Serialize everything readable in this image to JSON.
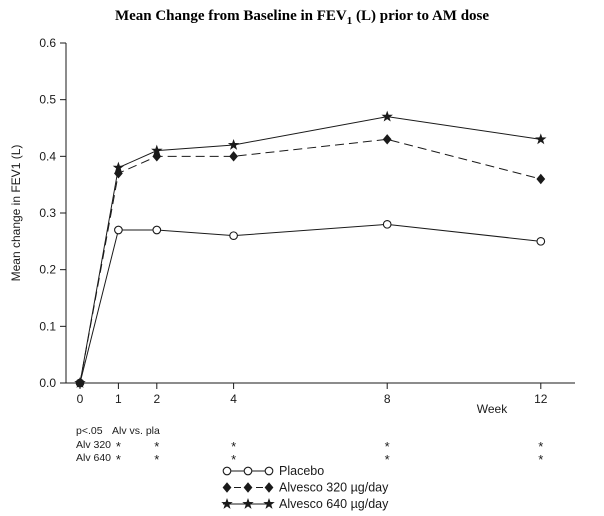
{
  "title": {
    "prefix": "Mean Change from Baseline in FEV",
    "sub": "1",
    "suffix": " (L) prior to AM dose"
  },
  "chart_data": {
    "type": "line",
    "title": "Mean Change from Baseline in FEV1 (L) prior to AM dose",
    "x": [
      0,
      1,
      2,
      4,
      8,
      12
    ],
    "xticks": [
      0,
      1,
      2,
      4,
      8,
      12
    ],
    "yticks": [
      0.0,
      0.1,
      0.2,
      0.3,
      0.4,
      0.5,
      0.6
    ],
    "ylim": [
      0.0,
      0.6
    ],
    "xlabel": "Week",
    "ylabel": "Mean change in FEV1 (L)",
    "grid": false,
    "legend_position": "bottom",
    "line_color": "#1a1a1a",
    "series": [
      {
        "name": "Placebo",
        "marker": "circle-open",
        "line": "solid",
        "values": [
          0.0,
          0.27,
          0.27,
          0.26,
          0.28,
          0.25
        ]
      },
      {
        "name": "Alvesco 320 µg/day",
        "marker": "diamond-filled",
        "line": "dashed",
        "values": [
          0.0,
          0.37,
          0.4,
          0.4,
          0.43,
          0.36
        ]
      },
      {
        "name": "Alvesco 640 µg/day",
        "marker": "star-filled",
        "line": "solid",
        "values": [
          0.0,
          0.38,
          0.41,
          0.42,
          0.47,
          0.43
        ]
      }
    ]
  },
  "significance": {
    "header_left": "p<.05",
    "header_right": "Alv vs.  pla",
    "rows": [
      {
        "label": "Alv 320",
        "symbol": "*",
        "weeks": [
          1,
          2,
          4,
          8,
          12
        ]
      },
      {
        "label": "Alv 640",
        "symbol": "*",
        "weeks": [
          1,
          2,
          4,
          8,
          12
        ]
      }
    ]
  }
}
